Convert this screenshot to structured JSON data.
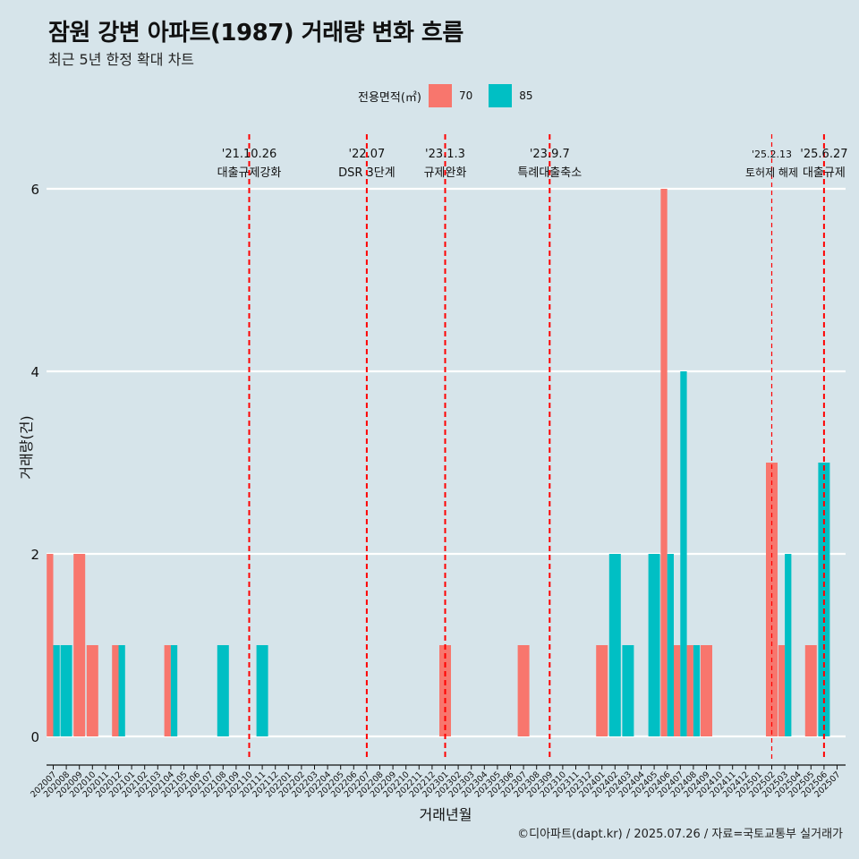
{
  "title": "잠원 강변 아파트(1987) 거래량 변화 흐름",
  "subtitle": "최근 5년 한정 확대 차트",
  "caption": "©디아파트(dapt.kr) / 2025.07.26 / 자료=국토교통부 실거래가",
  "legend": {
    "title": "전용면적(㎡)",
    "items": [
      {
        "label": "70",
        "color": "#f8766d"
      },
      {
        "label": "85",
        "color": "#00bfc4"
      }
    ]
  },
  "chart_data": {
    "type": "bar",
    "xlabel": "거래년월",
    "ylabel": "거래량(건)",
    "ylim": [
      0,
      6
    ],
    "yticks": [
      0,
      2,
      4,
      6
    ],
    "grid": "horizontal",
    "legend_position": "top",
    "categories": [
      "202007",
      "202008",
      "202009",
      "202010",
      "202011",
      "202012",
      "202101",
      "202102",
      "202103",
      "202104",
      "202105",
      "202106",
      "202107",
      "202108",
      "202109",
      "202110",
      "202111",
      "202112",
      "202201",
      "202202",
      "202203",
      "202204",
      "202205",
      "202206",
      "202207",
      "202208",
      "202209",
      "202210",
      "202211",
      "202212",
      "202301",
      "202302",
      "202303",
      "202304",
      "202305",
      "202306",
      "202307",
      "202308",
      "202309",
      "202310",
      "202311",
      "202312",
      "202401",
      "202402",
      "202403",
      "202404",
      "202405",
      "202406",
      "202407",
      "202408",
      "202409",
      "202410",
      "202411",
      "202412",
      "202501",
      "202502",
      "202503",
      "202504",
      "202505",
      "202506",
      "202507"
    ],
    "series": [
      {
        "name": "70",
        "color": "#f8766d",
        "values": [
          2,
          0,
          2,
          1,
          0,
          1,
          0,
          0,
          0,
          1,
          0,
          0,
          0,
          0,
          0,
          0,
          0,
          0,
          0,
          0,
          0,
          0,
          0,
          0,
          0,
          0,
          0,
          0,
          0,
          0,
          1,
          0,
          0,
          0,
          0,
          0,
          1,
          0,
          0,
          0,
          0,
          0,
          1,
          0,
          0,
          0,
          0,
          6,
          1,
          1,
          1,
          0,
          0,
          0,
          0,
          3,
          1,
          0,
          1,
          0,
          0
        ]
      },
      {
        "name": "85",
        "color": "#00bfc4",
        "values": [
          1,
          1,
          0,
          0,
          0,
          1,
          0,
          0,
          0,
          1,
          0,
          0,
          0,
          1,
          0,
          0,
          1,
          0,
          0,
          0,
          0,
          0,
          0,
          0,
          0,
          0,
          0,
          0,
          0,
          0,
          0,
          0,
          0,
          0,
          0,
          0,
          0,
          0,
          0,
          0,
          0,
          0,
          0,
          2,
          1,
          0,
          2,
          2,
          4,
          1,
          0,
          0,
          0,
          0,
          0,
          0,
          2,
          0,
          0,
          3,
          0
        ]
      }
    ],
    "annotations": [
      {
        "month": "202110",
        "date": "'21.10.26",
        "label": "대출규제강화",
        "style": "dashed",
        "color": "#ff0000"
      },
      {
        "month": "202207",
        "date": "'22.07",
        "label": "DSR 3단계",
        "style": "dashed",
        "color": "#ff0000"
      },
      {
        "month": "202301",
        "date": "'23.1.3",
        "label": "규제완화",
        "style": "dashed",
        "color": "#ff0000"
      },
      {
        "month": "202309",
        "date": "'23.9.7",
        "label": "특례대출축소",
        "style": "dashed",
        "color": "#ff0000"
      },
      {
        "month": "202502",
        "date": "'25.2.13",
        "label": "토허제 해제",
        "style": "thin-dashed",
        "color": "#ff0000"
      },
      {
        "month": "202506",
        "date": "'25.6.27",
        "label": "대출규제",
        "style": "dashed",
        "color": "#ff0000"
      }
    ]
  }
}
